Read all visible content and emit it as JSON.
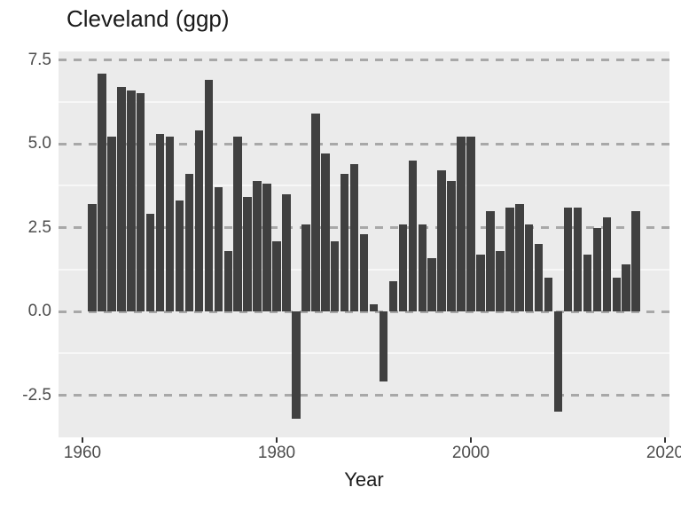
{
  "title": "Cleveland (ggp)",
  "chart_data": {
    "type": "bar",
    "title": "Cleveland (ggp)",
    "xlabel": "Year",
    "ylabel": "",
    "legend": "none",
    "grid": "major horizontal dashed gray, minor horizontal solid white",
    "panel_bg": "#ebebeb",
    "bar_color": "#404040",
    "major_grid_color": "#a8a8a8",
    "minor_grid_color": "#f7f7f7",
    "axis_text_color": "#4d4d4d",
    "xlim": [
      1957.5,
      2020.5
    ],
    "ylim": [
      -3.76,
      7.75
    ],
    "x_ticks": [
      1960,
      1980,
      2000,
      2020
    ],
    "y_ticks": [
      7.5,
      5.0,
      2.5,
      0.0,
      -2.5
    ],
    "y_minor_ticks": [
      6.25,
      3.75,
      1.25,
      -1.25
    ],
    "x": [
      1961,
      1962,
      1963,
      1964,
      1965,
      1966,
      1967,
      1968,
      1969,
      1970,
      1971,
      1972,
      1973,
      1974,
      1975,
      1976,
      1977,
      1978,
      1979,
      1980,
      1981,
      1982,
      1983,
      1984,
      1985,
      1986,
      1987,
      1988,
      1989,
      1990,
      1991,
      1992,
      1993,
      1994,
      1995,
      1996,
      1997,
      1998,
      1999,
      2000,
      2001,
      2002,
      2003,
      2004,
      2005,
      2006,
      2007,
      2008,
      2009,
      2010,
      2011,
      2012,
      2013,
      2014,
      2015,
      2016,
      2017
    ],
    "values": [
      3.2,
      7.1,
      5.2,
      6.7,
      6.6,
      6.5,
      2.9,
      5.3,
      5.2,
      3.3,
      4.1,
      5.4,
      6.9,
      3.7,
      1.8,
      5.2,
      3.4,
      3.9,
      3.8,
      2.1,
      3.5,
      -3.2,
      2.6,
      5.9,
      4.7,
      2.1,
      4.1,
      4.4,
      2.3,
      0.2,
      -2.1,
      0.9,
      2.6,
      4.5,
      2.6,
      1.6,
      4.2,
      3.9,
      5.2,
      5.2,
      1.7,
      3.0,
      1.8,
      3.1,
      3.2,
      2.6,
      2.0,
      1.0,
      -3.0,
      3.1,
      3.1,
      1.7,
      2.5,
      2.8,
      1.0,
      1.4,
      3.0
    ]
  }
}
